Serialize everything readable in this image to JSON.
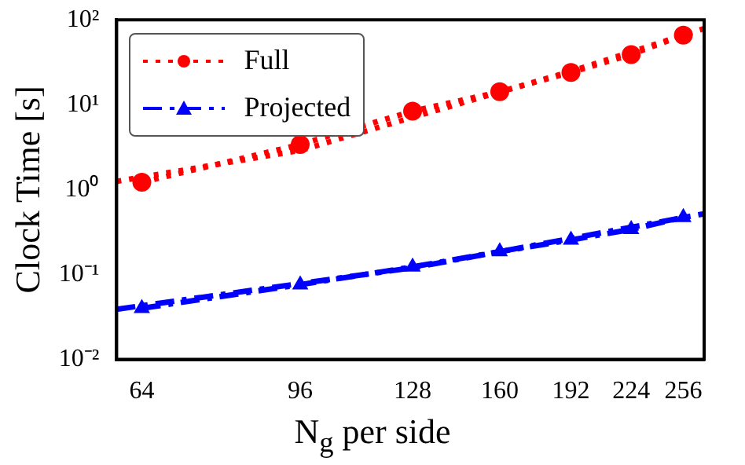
{
  "chart_data": {
    "type": "line",
    "xlabel": "N$_{g}$ per side",
    "ylabel": "Clock Time [s]",
    "log": "xy",
    "xlim": [
      60,
      270
    ],
    "ylim": [
      0.01,
      100
    ],
    "xticks": [
      64,
      96,
      128,
      160,
      192,
      224,
      256
    ],
    "yticks": [
      {
        "value": 0.01,
        "label": "10⁻²"
      },
      {
        "value": 0.1,
        "label": "10⁻¹"
      },
      {
        "value": 1,
        "label": "10⁰"
      },
      {
        "value": 10,
        "label": "10¹"
      },
      {
        "value": 100,
        "label": "10²"
      }
    ],
    "legend": "top left",
    "grid": false,
    "series": [
      {
        "name": "Full",
        "color": "#ff0000",
        "marker": "circle",
        "line_style": "dotted",
        "x": [
          64,
          96,
          128,
          160,
          192,
          224,
          256
        ],
        "values": [
          1.22,
          3.4,
          8.4,
          14.2,
          24,
          39,
          66
        ]
      },
      {
        "name": "Projected",
        "color": "#0000ff",
        "marker": "triangle",
        "line_style": "dashed",
        "x": [
          64,
          96,
          128,
          160,
          192,
          224,
          256
        ],
        "values": [
          0.04,
          0.076,
          0.123,
          0.186,
          0.255,
          0.34,
          0.47
        ]
      },
      {
        "color": "#ff0000",
        "marker": "none",
        "line_style": "dotted",
        "x": [
          60,
          96,
          128,
          192,
          270
        ],
        "values": [
          1.25,
          2.9,
          7.1,
          24.7,
          79
        ]
      },
      {
        "color": "#0000ff",
        "marker": "none",
        "line_style": "dashed",
        "x": [
          60,
          128,
          270
        ],
        "values": [
          0.039,
          0.12,
          0.52
        ]
      }
    ]
  }
}
